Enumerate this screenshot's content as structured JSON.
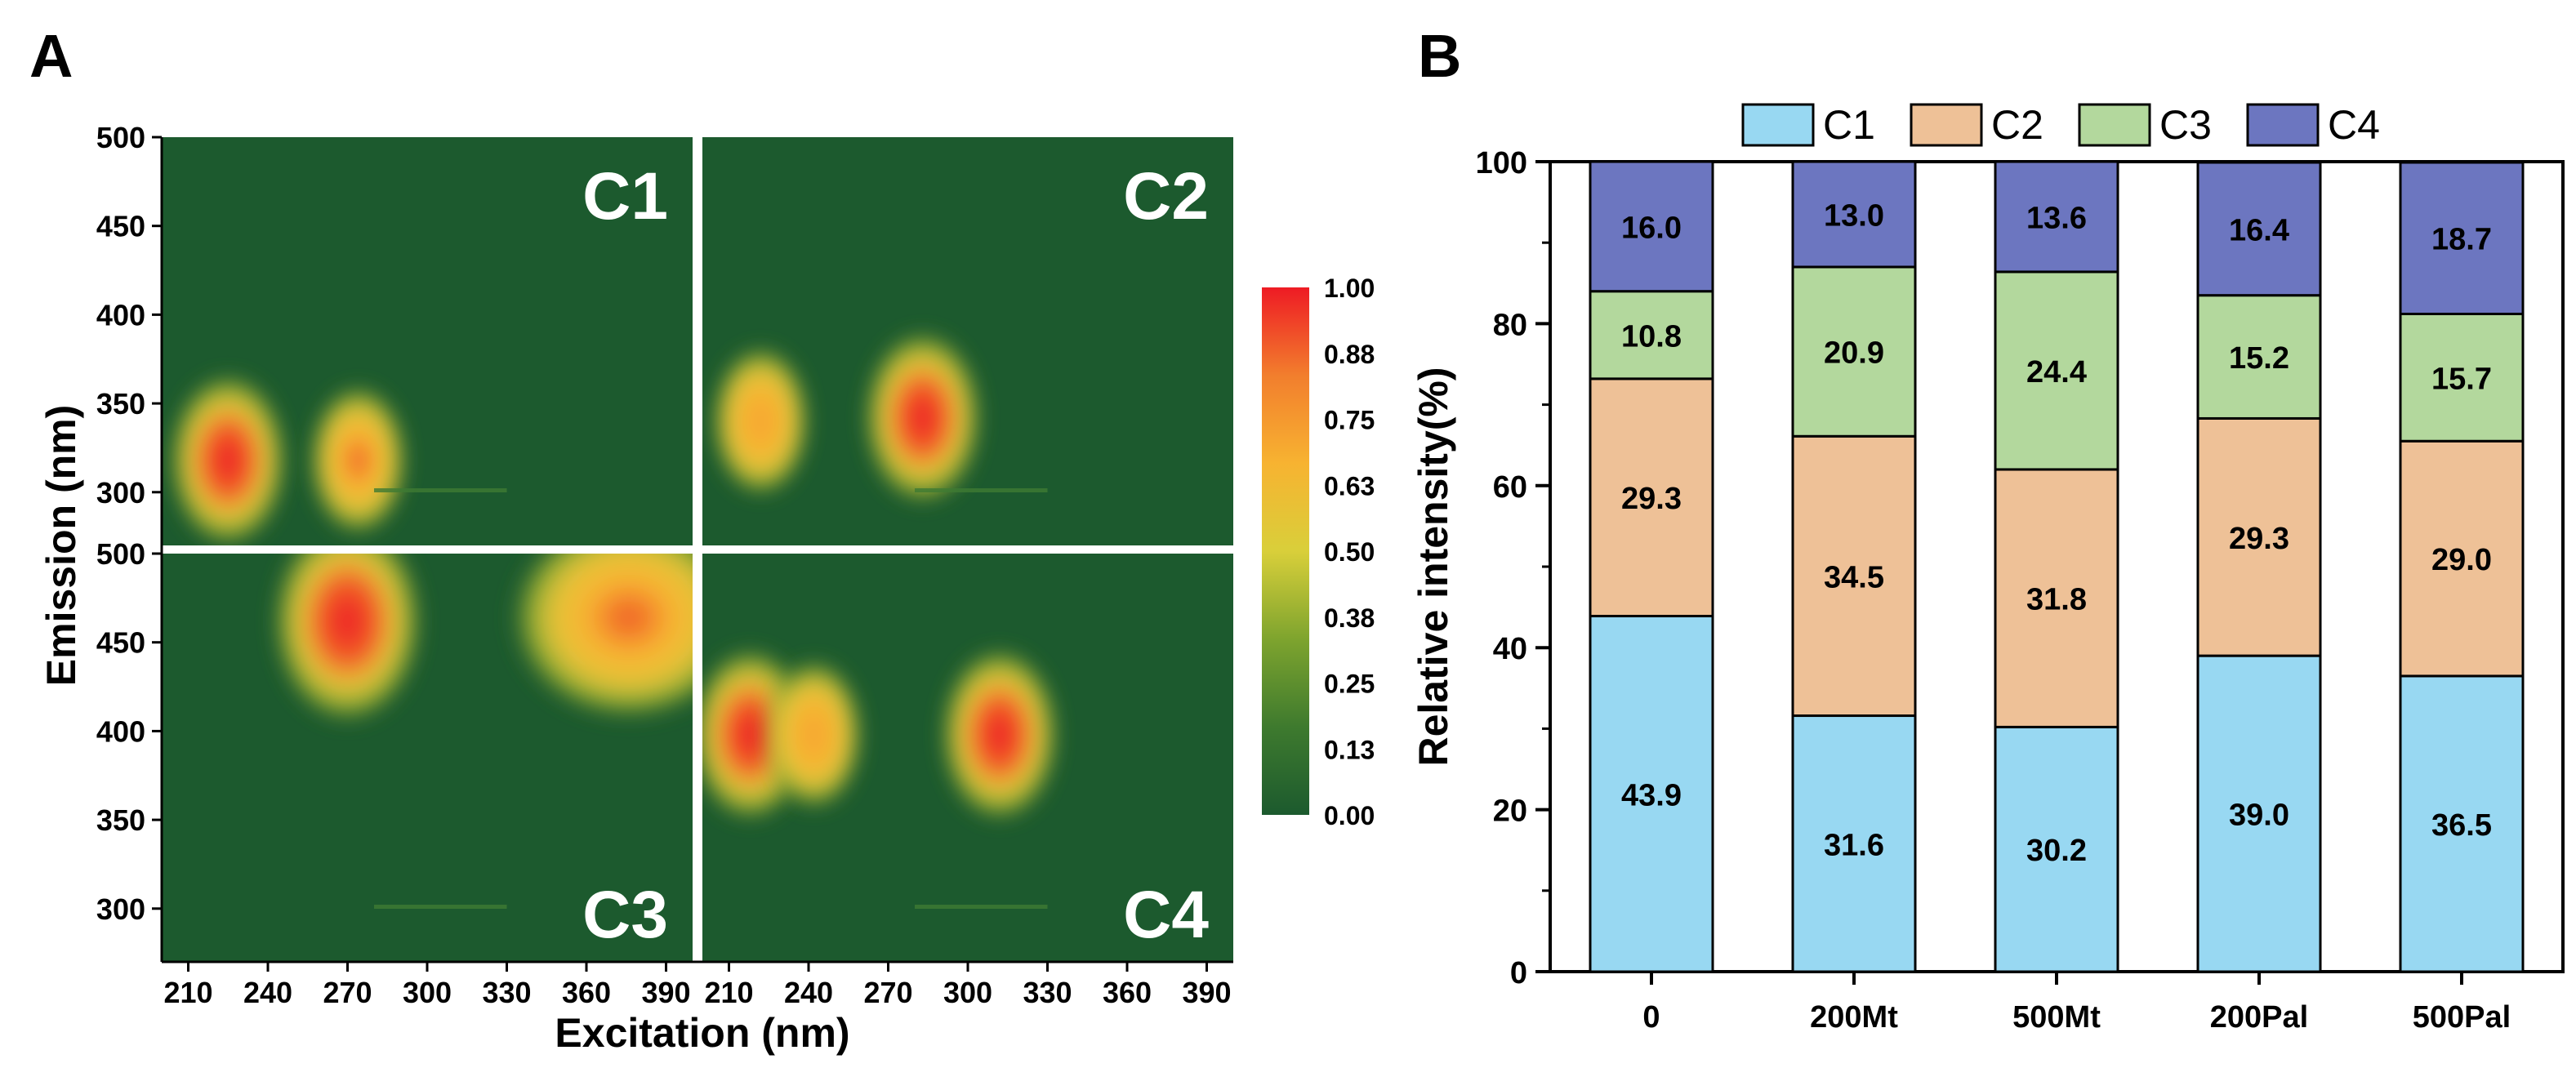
{
  "panel_labels": {
    "a": "A",
    "b": "B"
  },
  "chart_data": [
    {
      "type": "heatmap",
      "id": "panel-A",
      "title": "",
      "xlabel": "Excitation (nm)",
      "ylabel": "Emission (nm)",
      "xlim": [
        200,
        400
      ],
      "ylim": [
        270,
        500
      ],
      "x_ticks": [
        210,
        240,
        270,
        300,
        330,
        360,
        390
      ],
      "y_ticks": [
        300,
        350,
        400,
        450,
        500
      ],
      "colorbar": {
        "min": 0.0,
        "max": 1.0,
        "ticks": [
          "1.00",
          "0.88",
          "0.75",
          "0.63",
          "0.50",
          "0.38",
          "0.25",
          "0.13",
          "0.00"
        ],
        "colors": [
          "#1c5a2e",
          "#3e7a2e",
          "#7ea42e",
          "#d9cf3a",
          "#f7b331",
          "#f27e2d",
          "#ee1b24"
        ]
      },
      "components": [
        {
          "name": "C1",
          "peaks": [
            {
              "ex": 225,
              "em": 318,
              "intensity": 0.95
            },
            {
              "ex": 274,
              "em": 318,
              "intensity": 0.78
            }
          ]
        },
        {
          "name": "C2",
          "peaks": [
            {
              "ex": 222,
              "em": 340,
              "intensity": 0.62
            },
            {
              "ex": 283,
              "em": 342,
              "intensity": 0.98
            }
          ]
        },
        {
          "name": "C3",
          "peaks": [
            {
              "ex": 270,
              "em": 462,
              "intensity": 0.98
            },
            {
              "ex": 376,
              "em": 464,
              "intensity": 0.72
            }
          ]
        },
        {
          "name": "C4",
          "peaks": [
            {
              "ex": 218,
              "em": 398,
              "intensity": 0.92
            },
            {
              "ex": 242,
              "em": 398,
              "intensity": 0.68
            },
            {
              "ex": 312,
              "em": 398,
              "intensity": 1.0
            }
          ]
        }
      ]
    },
    {
      "type": "bar",
      "stacked": true,
      "id": "panel-B",
      "title": "",
      "xlabel": "",
      "ylabel": "Relative intensity(%)",
      "ylim": [
        0,
        100
      ],
      "y_ticks": [
        0,
        20,
        40,
        60,
        80,
        100
      ],
      "categories": [
        "0",
        "200Mt",
        "500Mt",
        "200Pal",
        "500Pal"
      ],
      "legend_position": "top",
      "series": [
        {
          "name": "C1",
          "color": "#98d8f2",
          "values": [
            43.9,
            31.6,
            30.2,
            39.0,
            36.5
          ],
          "labels": [
            "43.9",
            "31.6",
            "30.2",
            "39.0",
            "36.5"
          ]
        },
        {
          "name": "C2",
          "color": "#eec197",
          "values": [
            29.3,
            34.5,
            31.8,
            29.3,
            29.0
          ],
          "labels": [
            "29.3",
            "34.5",
            "31.8",
            "29.3",
            "29.0"
          ]
        },
        {
          "name": "C3",
          "color": "#b3d89d",
          "values": [
            10.8,
            20.9,
            24.4,
            15.2,
            15.7
          ],
          "labels": [
            "10.8",
            "20.9",
            "24.4",
            "15.2",
            "15.7"
          ]
        },
        {
          "name": "C4",
          "color": "#6c76c0",
          "values": [
            16.0,
            13.0,
            13.6,
            16.4,
            18.7
          ],
          "labels": [
            "16.0",
            "13.0",
            "13.6",
            "16.4",
            "18.7"
          ]
        }
      ]
    }
  ]
}
